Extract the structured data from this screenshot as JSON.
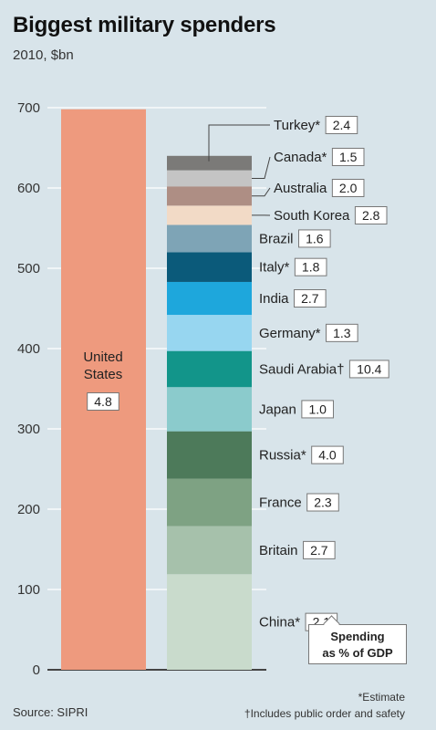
{
  "header": {
    "title": "Biggest military spenders",
    "subtitle": "2010, $bn"
  },
  "footer": {
    "source": "Source: SIPRI",
    "note_estimate": "*Estimate",
    "note_dagger": "†Includes public order and safety",
    "gdp_legend_line1": "Spending",
    "gdp_legend_line2": "as % of GDP"
  },
  "chart_data": {
    "type": "bar",
    "title": "Biggest military spenders",
    "subtitle": "2010, $bn",
    "ylim": [
      0,
      700
    ],
    "yticks": [
      0,
      100,
      200,
      300,
      400,
      500,
      600,
      700
    ],
    "grid": true,
    "united_states": {
      "name_line1": "United",
      "name_line2": "States",
      "value": 698,
      "gdp": "4.8",
      "color": "#ee9a7e"
    },
    "stack": [
      {
        "name": "China*",
        "value": 119,
        "gdp": "2.1",
        "color": "#c9dbcc"
      },
      {
        "name": "Britain",
        "value": 60,
        "gdp": "2.7",
        "color": "#a6c1ab"
      },
      {
        "name": "France",
        "value": 59,
        "gdp": "2.3",
        "color": "#7ea283"
      },
      {
        "name": "Russia*",
        "value": 59,
        "gdp": "4.0",
        "color": "#4d7a5a"
      },
      {
        "name": "Japan",
        "value": 55,
        "gdp": "1.0",
        "color": "#8bcbcc"
      },
      {
        "name": "Saudi Arabia†",
        "value": 45,
        "gdp": "10.4",
        "color": "#12958a"
      },
      {
        "name": "Germany*",
        "value": 45,
        "gdp": "1.3",
        "color": "#97d6f0"
      },
      {
        "name": "India",
        "value": 41,
        "gdp": "2.7",
        "color": "#1ea7dc"
      },
      {
        "name": "Italy*",
        "value": 37,
        "gdp": "1.8",
        "color": "#0b5a7a"
      },
      {
        "name": "Brazil",
        "value": 34,
        "gdp": "1.6",
        "color": "#7ea4b6"
      },
      {
        "name": "South Korea",
        "value": 24,
        "gdp": "2.8",
        "color": "#f2dac6"
      },
      {
        "name": "Australia",
        "value": 24,
        "gdp": "2.0",
        "color": "#ae8e84"
      },
      {
        "name": "Canada*",
        "value": 20,
        "gdp": "1.5",
        "color": "#c4c4c4"
      },
      {
        "name": "Turkey*",
        "value": 18,
        "gdp": "2.4",
        "color": "#7b7a78"
      }
    ]
  }
}
